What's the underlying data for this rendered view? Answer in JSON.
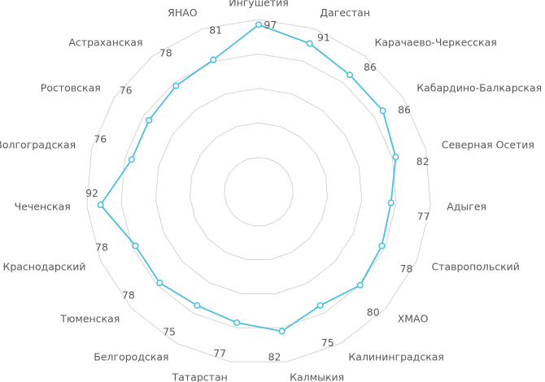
{
  "chart_data": {
    "type": "radar",
    "categories": [
      "Ингушетия",
      "Дагестан",
      "Карачаево-Черкесская",
      "Кабардино-Балкарская",
      "Северная Осетия",
      "Адыгея",
      "Ставропольский",
      "ХМАО",
      "Калининградская",
      "Калмыкия",
      "Татарстан",
      "Белгородская",
      "Тюменская",
      "Краснодарский",
      "Чеченская",
      "Волгоградская",
      "Ростовская",
      "Астраханская",
      "ЯНАО"
    ],
    "values": [
      97,
      91,
      86,
      86,
      82,
      77,
      78,
      80,
      75,
      82,
      77,
      75,
      78,
      78,
      92,
      76,
      76,
      78,
      81
    ],
    "color": "#4bbfe0",
    "ylim": [
      0,
      100
    ],
    "yticks": [
      0,
      20,
      40,
      60,
      80,
      100
    ],
    "grid": true
  }
}
